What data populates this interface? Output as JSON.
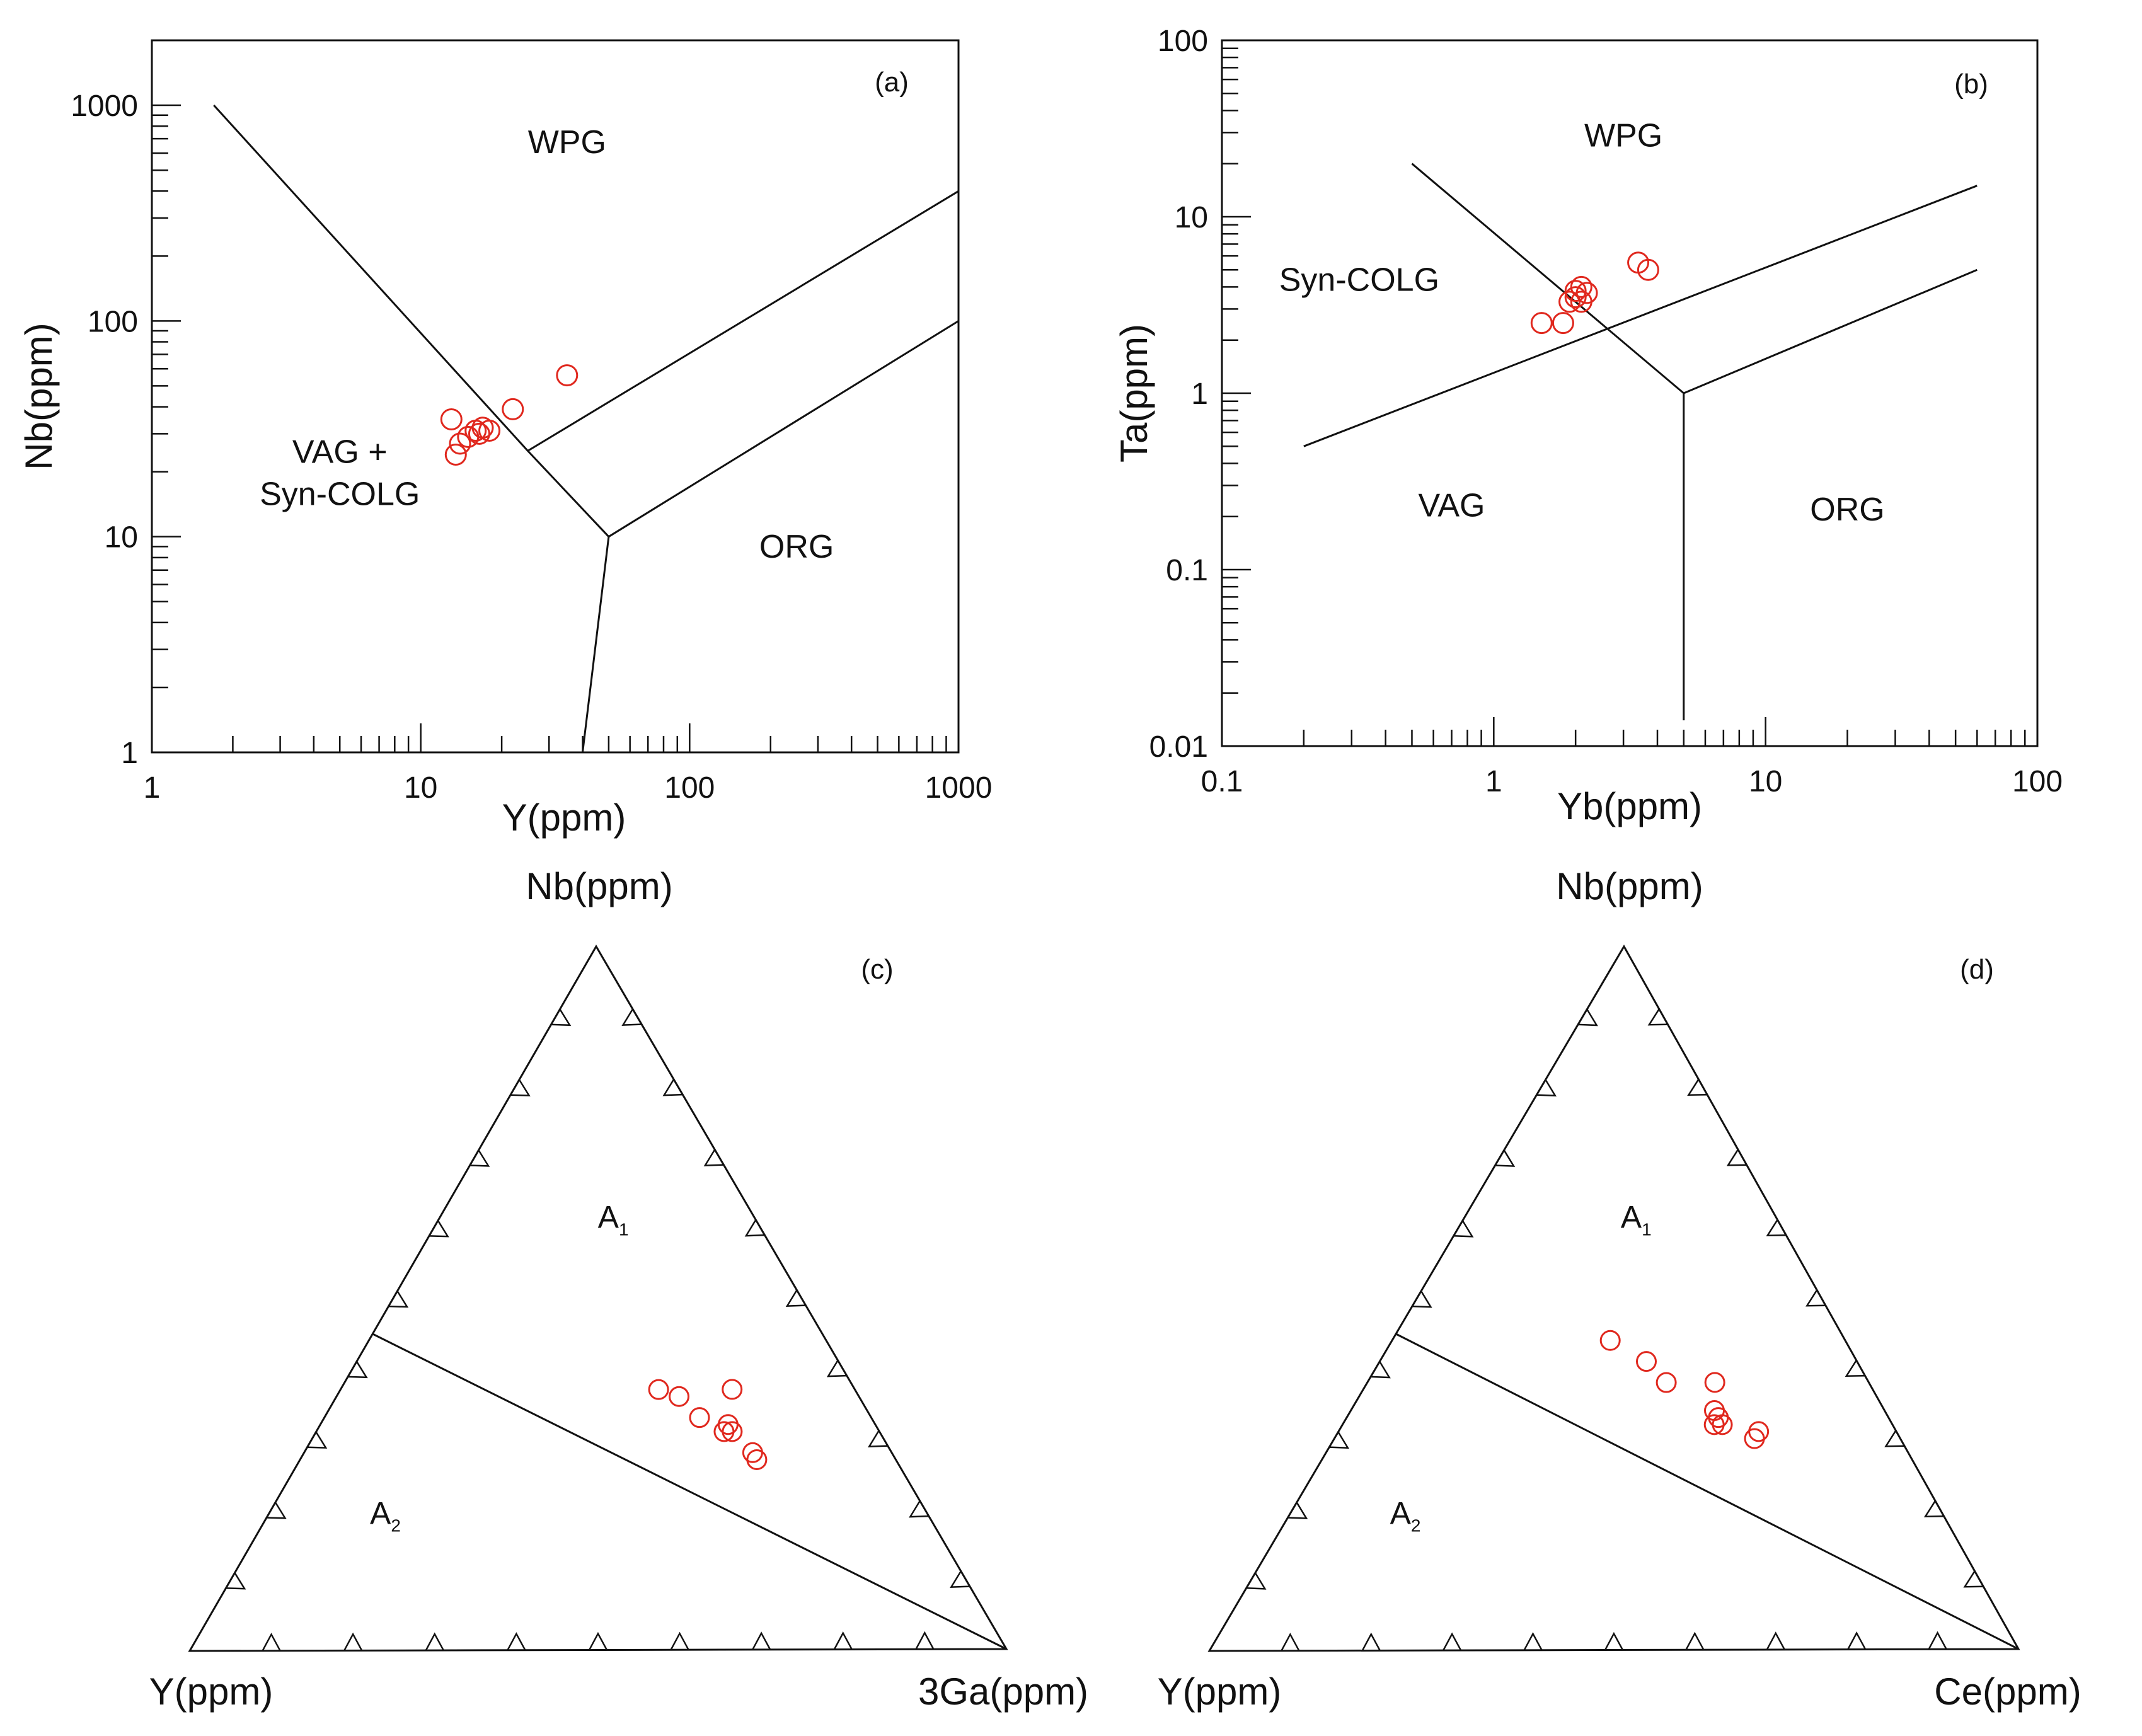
{
  "chart_data": [
    {
      "id": "a",
      "type": "scatter",
      "panel_label": "(a)",
      "xlabel": "Y(ppm)",
      "ylabel": "Nb(ppm)",
      "xscale": "log",
      "yscale": "log",
      "xlim": [
        1,
        1000
      ],
      "ylim": [
        1,
        2000
      ],
      "xticks": [
        "1",
        "10",
        "100",
        "1000"
      ],
      "yticks": [
        "1",
        "10",
        "100",
        "1000"
      ],
      "regions": [
        {
          "label": "WPG",
          "x": 35,
          "y": 600
        },
        {
          "label": "VAG +",
          "x": 5,
          "y": 22
        },
        {
          "label": "Syn-COLG",
          "x": 5,
          "y": 14
        },
        {
          "label": "ORG",
          "x": 250,
          "y": 8
        }
      ],
      "boundaries": [
        [
          [
            1.7,
            1000
          ],
          [
            25,
            25
          ],
          [
            50,
            10
          ],
          [
            40,
            1
          ]
        ],
        [
          [
            25,
            25
          ],
          [
            1000,
            400
          ]
        ],
        [
          [
            50,
            10
          ],
          [
            1000,
            100
          ]
        ]
      ],
      "points": [
        [
          13,
          35
        ],
        [
          14,
          27
        ],
        [
          15,
          29
        ],
        [
          16,
          31
        ],
        [
          17,
          32
        ],
        [
          18,
          31
        ],
        [
          22,
          39
        ],
        [
          35,
          56
        ],
        [
          13.5,
          24
        ],
        [
          16.5,
          30
        ]
      ]
    },
    {
      "id": "b",
      "type": "scatter",
      "panel_label": "(b)",
      "xlabel": "Yb(ppm)",
      "ylabel": "Ta(ppm)",
      "xscale": "log",
      "yscale": "log",
      "xlim": [
        0.1,
        100
      ],
      "ylim": [
        0.01,
        100
      ],
      "xticks": [
        "0.1",
        "1",
        "10",
        "100"
      ],
      "yticks": [
        "0.01",
        "0.1",
        "1",
        "10",
        "100"
      ],
      "regions": [
        {
          "label": "WPG",
          "x": 3,
          "y": 25
        },
        {
          "label": "Syn-COLG",
          "x": 0.32,
          "y": 3.8
        },
        {
          "label": "VAG",
          "x": 0.7,
          "y": 0.2
        },
        {
          "label": "ORG",
          "x": 20,
          "y": 0.19
        }
      ],
      "boundaries": [
        [
          [
            0.5,
            20
          ],
          [
            5,
            1
          ],
          [
            60,
            5
          ]
        ],
        [
          [
            5,
            1
          ],
          [
            5,
            0.014
          ]
        ],
        [
          [
            0.2,
            0.5
          ],
          [
            60,
            15
          ]
        ]
      ],
      "points": [
        [
          1.5,
          2.5
        ],
        [
          1.8,
          2.5
        ],
        [
          1.9,
          3.3
        ],
        [
          2.0,
          3.5
        ],
        [
          2.1,
          4.0
        ],
        [
          2.2,
          3.7
        ],
        [
          2.1,
          3.3
        ],
        [
          3.4,
          5.5
        ],
        [
          3.7,
          5.0
        ],
        [
          2.0,
          3.8
        ]
      ]
    },
    {
      "id": "c",
      "type": "ternary",
      "panel_label": "(c)",
      "apex_labels": {
        "top": "Nb(ppm)",
        "left": "Y(ppm)",
        "right": "3Ga(ppm)"
      },
      "regions": [
        {
          "label": "A",
          "subscript": "1",
          "top": 0.6,
          "left": 0.18,
          "right": 0.22
        },
        {
          "label": "A",
          "subscript": "2",
          "top": 0.18,
          "left": 0.67,
          "right": 0.15
        }
      ],
      "boundary": {
        "from": {
          "top": 0.45,
          "left": 0.55,
          "right": 0.0
        },
        "to": {
          "top": 0.0,
          "left": 0.0,
          "right": 1.0
        }
      },
      "points": [
        [
          0.37,
          0.24,
          0.39
        ],
        [
          0.36,
          0.22,
          0.42
        ],
        [
          0.33,
          0.21,
          0.46
        ],
        [
          0.37,
          0.15,
          0.48
        ],
        [
          0.31,
          0.19,
          0.5
        ],
        [
          0.31,
          0.18,
          0.51
        ],
        [
          0.32,
          0.18,
          0.5
        ],
        [
          0.28,
          0.17,
          0.55
        ],
        [
          0.27,
          0.17,
          0.56
        ]
      ]
    },
    {
      "id": "d",
      "type": "ternary",
      "panel_label": "(d)",
      "apex_labels": {
        "top": "Nb(ppm)",
        "left": "Y(ppm)",
        "right": "Ce(ppm)"
      },
      "regions": [
        {
          "label": "A",
          "subscript": "1",
          "top": 0.6,
          "left": 0.18,
          "right": 0.22
        },
        {
          "label": "A",
          "subscript": "2",
          "top": 0.18,
          "left": 0.67,
          "right": 0.15
        }
      ],
      "boundary": {
        "from": {
          "top": 0.45,
          "left": 0.55,
          "right": 0.0
        },
        "to": {
          "top": 0.0,
          "left": 0.0,
          "right": 1.0
        }
      },
      "points": [
        [
          0.44,
          0.29,
          0.27
        ],
        [
          0.41,
          0.26,
          0.33
        ],
        [
          0.38,
          0.25,
          0.37
        ],
        [
          0.38,
          0.19,
          0.43
        ],
        [
          0.34,
          0.21,
          0.45
        ],
        [
          0.33,
          0.21,
          0.46
        ],
        [
          0.32,
          0.22,
          0.46
        ],
        [
          0.32,
          0.21,
          0.47
        ],
        [
          0.31,
          0.17,
          0.52
        ],
        [
          0.3,
          0.18,
          0.52
        ]
      ]
    }
  ],
  "style": {
    "point_color": "#e0281e",
    "line_color": "#111111"
  }
}
